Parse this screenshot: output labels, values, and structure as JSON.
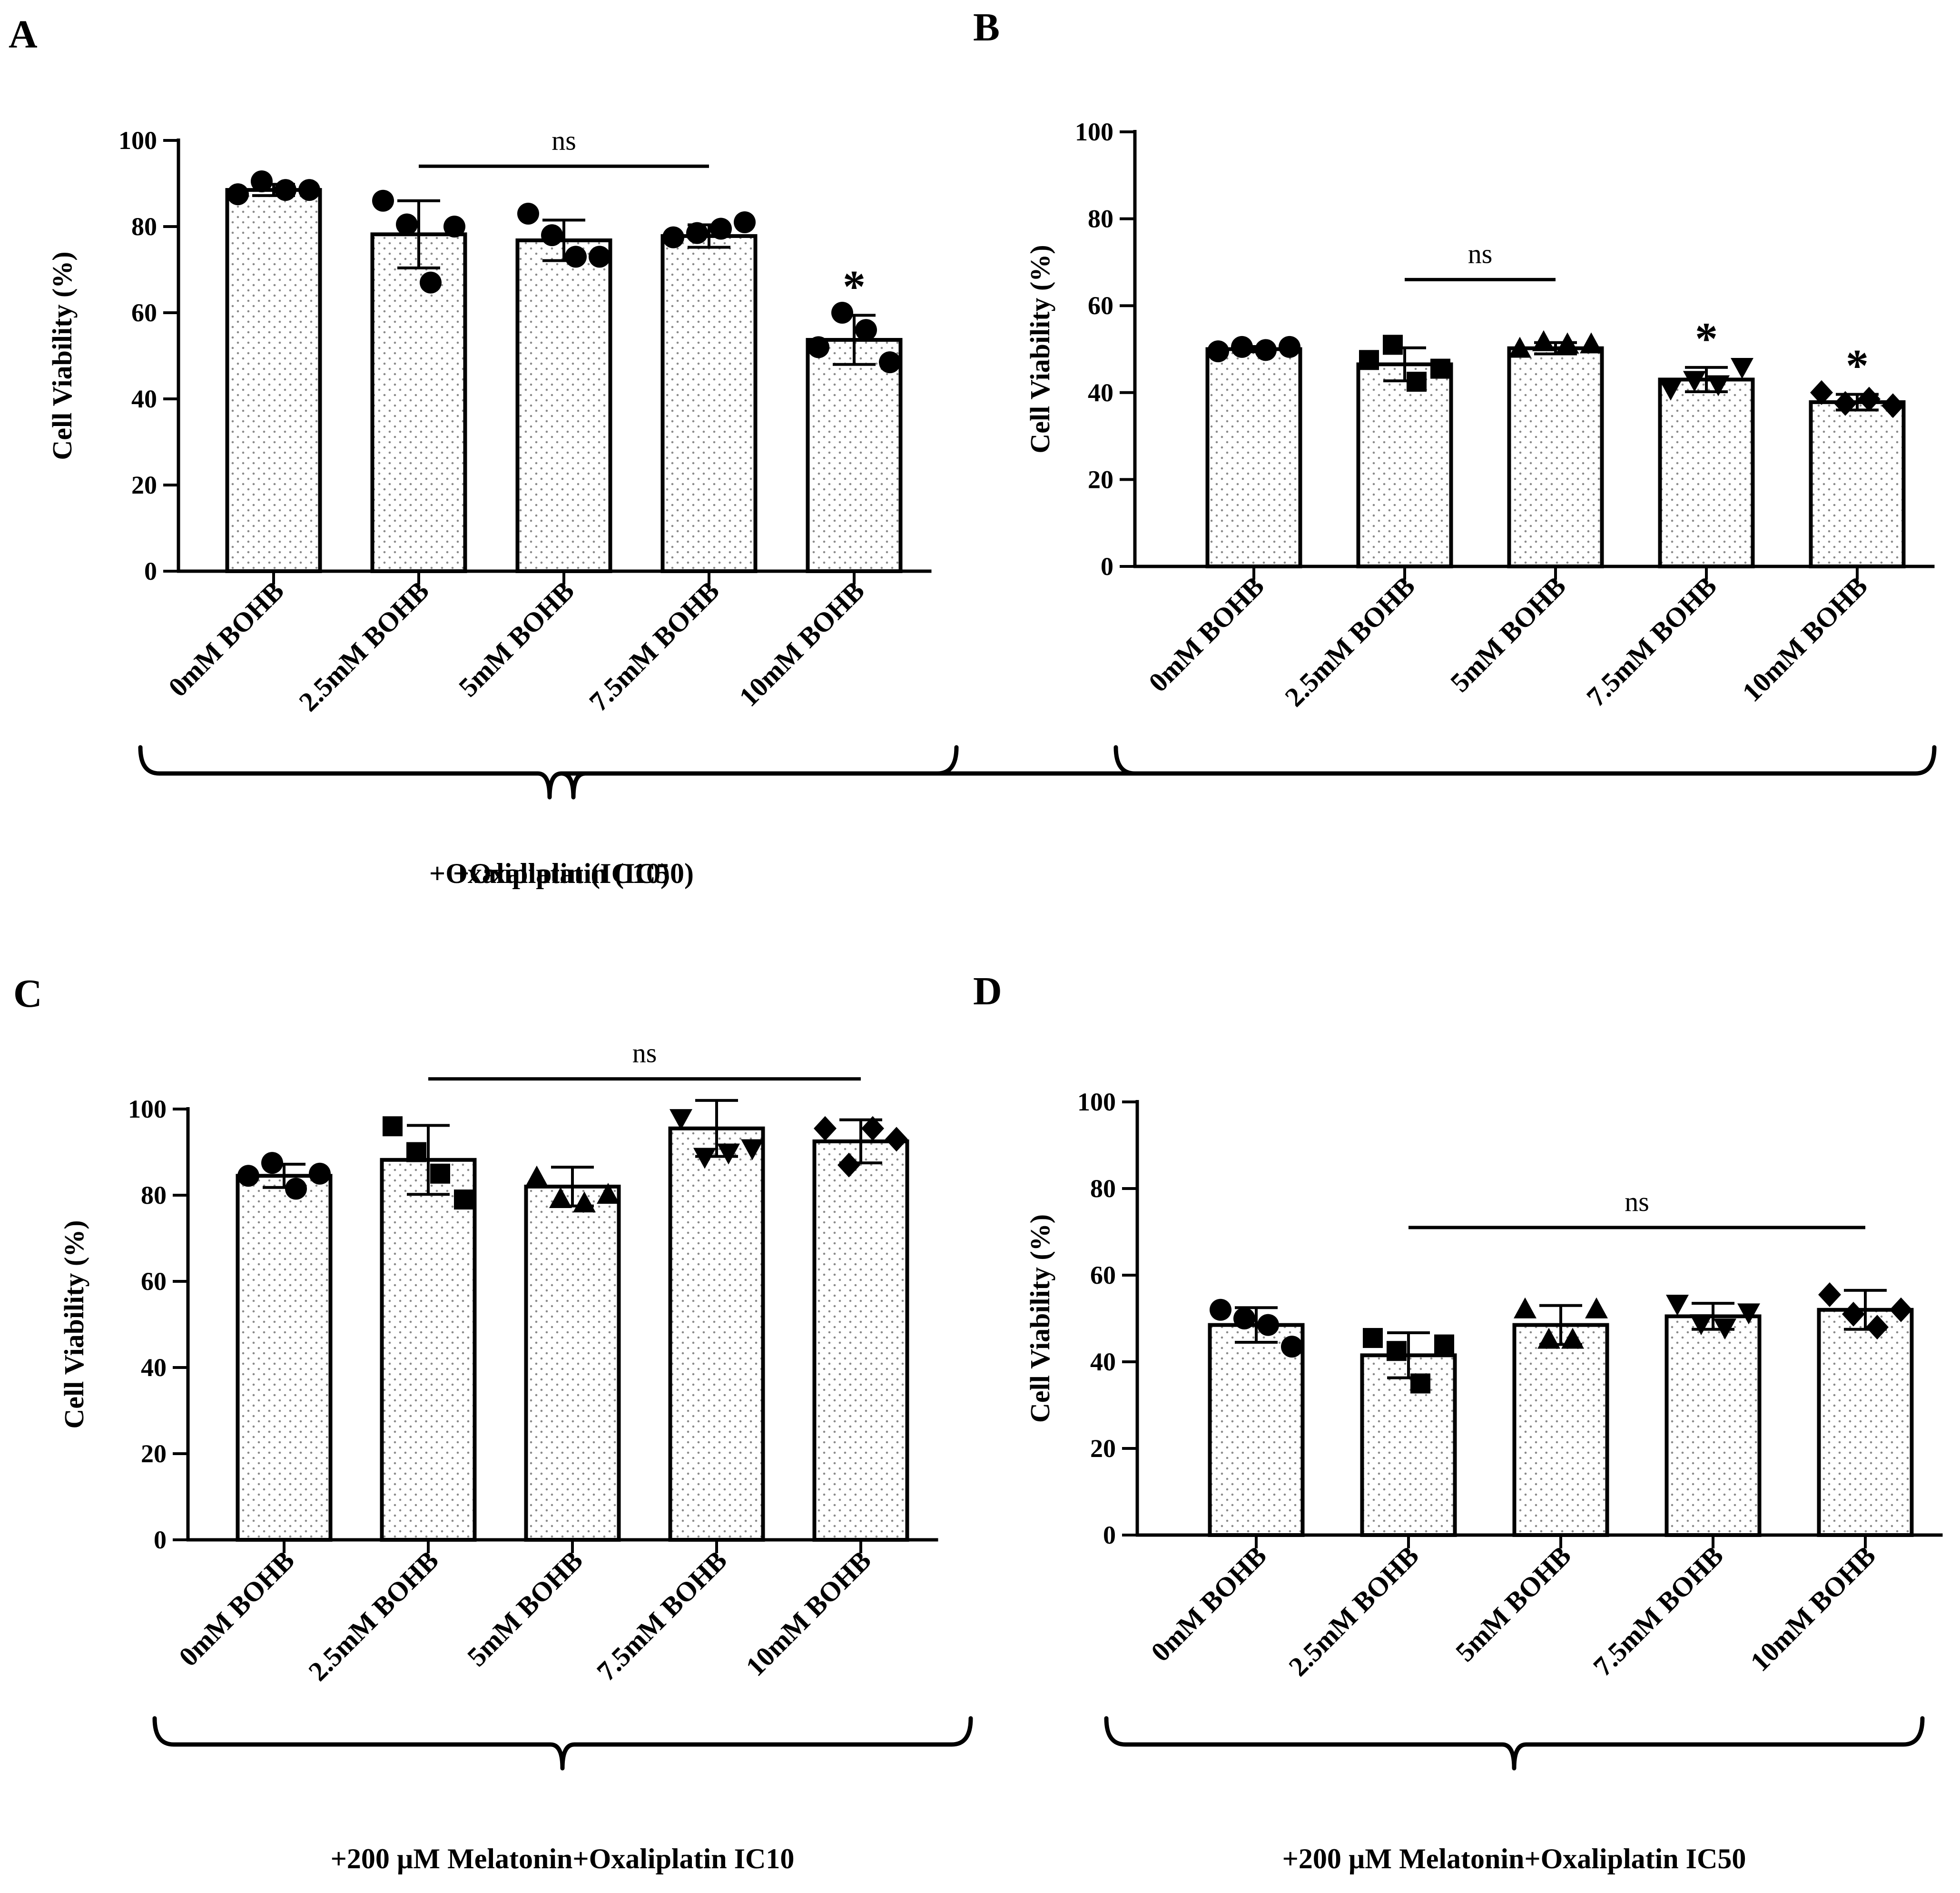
{
  "figure": {
    "colors": {
      "ink": "#000000",
      "bar_fill": "#ffffff",
      "stipple": "#8a8a8a"
    }
  },
  "chart_data": [
    {
      "type": "bar",
      "panel_label": "A",
      "ylabel": "Cell Viability (%)",
      "ylim": [
        0,
        100
      ],
      "yticks": [
        0,
        20,
        40,
        60,
        80,
        100
      ],
      "yticks_text": [
        "0",
        "20",
        "40",
        "60",
        "80",
        "100"
      ],
      "categories": [
        "0mM BOHB",
        "2.5mM BOHB",
        "5mM BOHB",
        "7.5mM BOHB",
        "10mM BOHB"
      ],
      "values": [
        88.5,
        78.2,
        76.8,
        77.8,
        53.7
      ],
      "errors": [
        1.3,
        7.8,
        4.7,
        2.6,
        5.7
      ],
      "points": [
        [
          87.5,
          90.5,
          88.5,
          88.5
        ],
        [
          86,
          80.5,
          67,
          80
        ],
        [
          83,
          78,
          73,
          73
        ],
        [
          77.5,
          78.5,
          79.5,
          81
        ],
        [
          52,
          60,
          56,
          48.5
        ]
      ],
      "markers": [
        "circle",
        "circle",
        "circle",
        "circle",
        "circle"
      ],
      "significance": [
        "",
        "",
        "",
        "",
        "*"
      ],
      "ns_label": "ns",
      "ns_span": [
        1,
        3
      ],
      "ns_y": 94,
      "treatment_label": "+Oxaliplatin (IC10)"
    },
    {
      "type": "bar",
      "panel_label": "B",
      "ylabel": "Cell Viability (%)",
      "ylim": [
        0,
        100
      ],
      "yticks": [
        0,
        20,
        40,
        60,
        80,
        100
      ],
      "yticks_text": [
        "0",
        "20",
        "40",
        "60",
        "80",
        "100"
      ],
      "categories": [
        "0mM BOHB",
        "2.5mM BOHB",
        "5mM BOHB",
        "7.5mM BOHB",
        "10mM BOHB"
      ],
      "values": [
        50,
        46.5,
        50.2,
        43,
        37.8
      ],
      "errors": [
        0.6,
        3.8,
        1.3,
        2.8,
        1.8
      ],
      "points": [
        [
          49.5,
          50.5,
          49.8,
          50.5
        ],
        [
          47.5,
          51,
          42.5,
          45.5
        ],
        [
          50,
          51.5,
          51,
          51
        ],
        [
          41,
          43,
          42,
          46
        ],
        [
          40,
          37.5,
          38.5,
          37
        ]
      ],
      "markers": [
        "circle",
        "square",
        "triangle-up",
        "triangle-down",
        "diamond"
      ],
      "significance": [
        "",
        "",
        "",
        "*",
        "*"
      ],
      "ns_label": "ns",
      "ns_span": [
        1,
        2
      ],
      "ns_y": 66,
      "treatment_label": "+Oxaliplatin (IC50)"
    },
    {
      "type": "bar",
      "panel_label": "C",
      "ylabel": "Cell Viability (%)",
      "ylim": [
        0,
        100
      ],
      "yticks": [
        0,
        20,
        40,
        60,
        80,
        100
      ],
      "yticks_text": [
        "0",
        "20",
        "40",
        "60",
        "80",
        "100"
      ],
      "categories": [
        "0mM BOHB",
        "2.5mM BOHB",
        "5mM BOHB",
        "7.5mM BOHB",
        "10mM BOHB"
      ],
      "values": [
        84.5,
        88.2,
        82,
        95.5,
        92.5
      ],
      "errors": [
        2.7,
        8,
        4.5,
        6.5,
        5
      ],
      "points": [
        [
          84.5,
          87.5,
          81.5,
          85
        ],
        [
          96,
          90,
          85,
          79
        ],
        [
          84,
          79,
          78,
          80
        ],
        [
          98,
          89,
          90,
          91
        ],
        [
          95.5,
          87,
          95.5,
          93
        ]
      ],
      "markers": [
        "circle",
        "square",
        "triangle-up",
        "triangle-down",
        "diamond"
      ],
      "significance": [
        "",
        "",
        "",
        "",
        ""
      ],
      "ns_label": "ns",
      "ns_span": [
        1,
        4
      ],
      "ns_y": 107,
      "treatment_label": "+200 µM Melatonin+Oxaliplatin IC10"
    },
    {
      "type": "bar",
      "panel_label": "D",
      "ylabel": "Cell Viability (%)",
      "ylim": [
        0,
        100
      ],
      "yticks": [
        0,
        20,
        40,
        60,
        80,
        100
      ],
      "yticks_text": [
        "0",
        "20",
        "40",
        "60",
        "80",
        "100"
      ],
      "categories": [
        "0mM BOHB",
        "2.5mM BOHB",
        "5mM BOHB",
        "7.5mM BOHB",
        "10mM BOHB"
      ],
      "values": [
        48.5,
        41.5,
        48.5,
        50.5,
        52
      ],
      "errors": [
        4,
        5.2,
        4.5,
        3,
        4.5
      ],
      "points": [
        [
          52,
          50,
          48.5,
          43.5
        ],
        [
          45.5,
          42.5,
          35,
          44
        ],
        [
          52,
          45,
          45,
          52
        ],
        [
          53.5,
          49,
          48,
          51.5
        ],
        [
          55.5,
          51,
          48,
          52
        ]
      ],
      "markers": [
        "circle",
        "square",
        "triangle-up",
        "triangle-down",
        "diamond"
      ],
      "significance": [
        "",
        "",
        "",
        "",
        ""
      ],
      "ns_label": "ns",
      "ns_span": [
        1,
        4
      ],
      "ns_y": 71,
      "treatment_label": "+200 µM Melatonin+Oxaliplatin IC50"
    }
  ]
}
